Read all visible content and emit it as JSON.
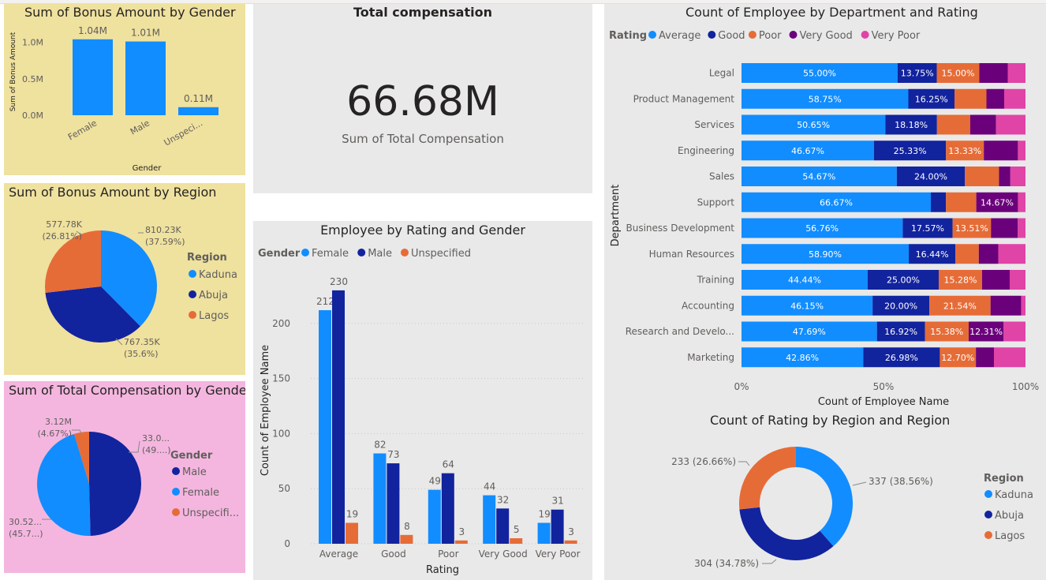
{
  "colors": {
    "kaduna": "#118DFF",
    "abuja": "#12239E",
    "lagos": "#E66C37",
    "average": "#118DFF",
    "good": "#12239E",
    "poor": "#E66C37",
    "very_good": "#6B007B",
    "very_poor": "#E044A7",
    "female": "#118DFF",
    "male": "#12239E",
    "unspecified": "#E66C37",
    "panel_yellow": "#EFE19E",
    "panel_pink": "#F4B6DF",
    "panel_gray": "#E9E9E9"
  },
  "bonus_by_gender": {
    "chart_data": {
      "type": "bar",
      "title": "Sum of Bonus Amount by Gender",
      "xlabel": "Gender",
      "ylabel": "Sum of Bonus Amount",
      "categories": [
        "Female",
        "Male",
        "Unspeci..."
      ],
      "values": [
        1.04,
        1.01,
        0.11
      ],
      "value_labels": [
        "1.04M",
        "1.01M",
        "0.11M"
      ],
      "ylim": [
        0,
        1.2
      ],
      "yticks": [
        0,
        0.5,
        1.0
      ],
      "ytick_labels": [
        "0.0M",
        "0.5M",
        "1.0M"
      ]
    }
  },
  "bonus_by_region": {
    "chart_data": {
      "type": "pie",
      "title": "Sum of Bonus Amount by Region",
      "legend_title": "Region",
      "slices": [
        {
          "name": "Kaduna",
          "value": 810.23,
          "label": "810.23K",
          "pct": "(37.59%)"
        },
        {
          "name": "Abuja",
          "value": 767.35,
          "label": "767.35K",
          "pct": "(35.6%)"
        },
        {
          "name": "Lagos",
          "value": 577.78,
          "label": "577.78K",
          "pct": "(26.81%)"
        }
      ]
    }
  },
  "comp_by_gender": {
    "chart_data": {
      "type": "pie",
      "title": "Sum of Total Compensation by Gender",
      "legend_title": "Gender",
      "legend_labels": [
        "Male",
        "Female",
        "Unspecifi..."
      ],
      "slices": [
        {
          "name": "Male",
          "value": 49.6,
          "label": "33.0...",
          "pct": "(49....)"
        },
        {
          "name": "Female",
          "value": 45.73,
          "label": "30.52...",
          "pct": "(45.7...)"
        },
        {
          "name": "Unspecified",
          "value": 4.67,
          "label": "3.12M",
          "pct": "(4.67%)"
        }
      ]
    }
  },
  "kpi": {
    "title": "Total compensation",
    "value": "66.68M",
    "caption": "Sum of Total Compensation"
  },
  "rating_gender": {
    "chart_data": {
      "type": "bar",
      "title": "Employee by Rating and Gender",
      "legend_title": "Gender",
      "xlabel": "Rating",
      "ylabel": "Count of Employee Name",
      "categories": [
        "Average",
        "Good",
        "Poor",
        "Very Good",
        "Very Poor"
      ],
      "series": [
        {
          "name": "Female",
          "values": [
            212,
            82,
            49,
            44,
            19
          ]
        },
        {
          "name": "Male",
          "values": [
            230,
            73,
            64,
            32,
            31
          ]
        },
        {
          "name": "Unspecified",
          "values": [
            19,
            8,
            3,
            5,
            3
          ]
        }
      ],
      "ylim": [
        0,
        250
      ],
      "yticks": [
        0,
        50,
        100,
        150,
        200
      ]
    }
  },
  "dept_rating": {
    "chart_data": {
      "type": "bar",
      "orientation": "horizontal-stacked-100",
      "title": "Count of Employee by Department and Rating",
      "legend_title": "Rating",
      "xlabel": "Count of Employee Name",
      "ylabel": "Department",
      "xticks": [
        "0%",
        "50%",
        "100%"
      ],
      "series_names": [
        "Average",
        "Good",
        "Poor",
        "Very Good",
        "Very Poor"
      ],
      "rows": [
        {
          "dept": "Legal",
          "values": [
            55.0,
            13.75,
            15.0,
            10.0,
            6.25
          ],
          "labels": [
            "55.00%",
            "13.75%",
            "15.00%",
            "",
            ""
          ]
        },
        {
          "dept": "Product Management",
          "values": [
            58.75,
            16.25,
            11.25,
            6.25,
            7.5
          ],
          "labels": [
            "58.75%",
            "16.25%",
            "",
            "",
            ""
          ]
        },
        {
          "dept": "Services",
          "values": [
            50.65,
            18.18,
            11.69,
            9.09,
            10.39
          ],
          "labels": [
            "50.65%",
            "18.18%",
            "",
            "",
            ""
          ]
        },
        {
          "dept": "Engineering",
          "values": [
            46.67,
            25.33,
            13.33,
            12.0,
            2.67
          ],
          "labels": [
            "46.67%",
            "25.33%",
            "13.33%",
            "",
            ""
          ]
        },
        {
          "dept": "Sales",
          "values": [
            54.67,
            24.0,
            12.0,
            4.0,
            5.33
          ],
          "labels": [
            "54.67%",
            "24.00%",
            "",
            "",
            ""
          ]
        },
        {
          "dept": "Support",
          "values": [
            66.67,
            5.33,
            10.67,
            14.67,
            2.66
          ],
          "labels": [
            "66.67%",
            "",
            "",
            "14.67%",
            ""
          ]
        },
        {
          "dept": "Business Development",
          "values": [
            56.76,
            17.57,
            13.51,
            9.46,
            2.7
          ],
          "labels": [
            "56.76%",
            "17.57%",
            "13.51%",
            "",
            ""
          ]
        },
        {
          "dept": "Human Resources",
          "values": [
            58.9,
            16.44,
            8.22,
            6.85,
            9.59
          ],
          "labels": [
            "58.90%",
            "16.44%",
            "",
            "",
            ""
          ]
        },
        {
          "dept": "Training",
          "values": [
            44.44,
            25.0,
            15.28,
            9.72,
            5.56
          ],
          "labels": [
            "44.44%",
            "25.00%",
            "15.28%",
            "",
            ""
          ]
        },
        {
          "dept": "Accounting",
          "values": [
            46.15,
            20.0,
            21.54,
            10.77,
            1.54
          ],
          "labels": [
            "46.15%",
            "20.00%",
            "21.54%",
            "",
            ""
          ]
        },
        {
          "dept": "Research and Develo...",
          "values": [
            47.69,
            16.92,
            15.38,
            12.31,
            7.7
          ],
          "labels": [
            "47.69%",
            "16.92%",
            "15.38%",
            "12.31%",
            ""
          ]
        },
        {
          "dept": "Marketing",
          "values": [
            42.86,
            26.98,
            12.7,
            6.35,
            11.11
          ],
          "labels": [
            "42.86%",
            "26.98%",
            "12.70%",
            "",
            ""
          ]
        }
      ]
    }
  },
  "rating_region": {
    "chart_data": {
      "type": "pie",
      "subtype": "donut",
      "title": "Count of Rating by Region and Region",
      "legend_title": "Region",
      "slices": [
        {
          "name": "Kaduna",
          "value": 337,
          "label": "337 (38.56%)"
        },
        {
          "name": "Abuja",
          "value": 304,
          "label": "304 (34.78%)"
        },
        {
          "name": "Lagos",
          "value": 233,
          "label": "233 (26.66%)"
        }
      ]
    }
  }
}
